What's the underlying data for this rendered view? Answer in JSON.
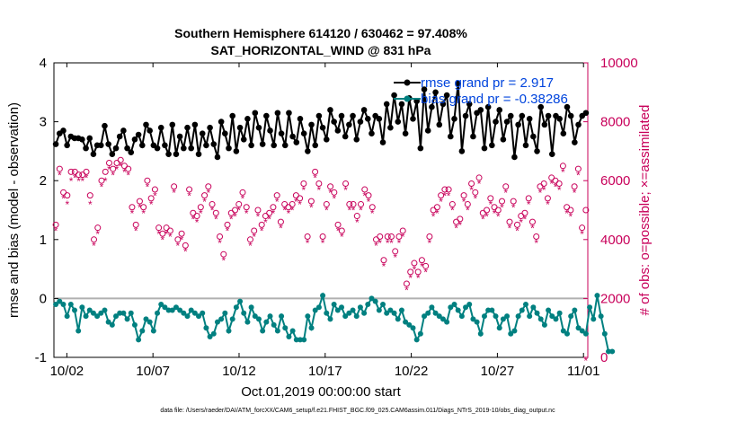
{
  "chart_data": {
    "type": "line",
    "title": "Southern Hemisphere 614120 / 630462 = 97.408%",
    "subtitle": "SAT_HORIZONTAL_WIND @ 831 hPa",
    "xlabel": "Oct.01,2019 00:00:00 start",
    "ylabel": "rmse and bias (model - observation)",
    "ylabel_right": "# of obs: o=possible; ×=assimilated",
    "footer": "data file: /Users/raeder/DAI/ATM_forcXX/CAM6_setup/f.e21.FHIST_BGC.f09_025.CAM6assim.011/Diags_NTrS_2019-10/obs_diag_output.nc",
    "ylim": [
      -1,
      4
    ],
    "ylim_right": [
      0,
      10000
    ],
    "x_tick_labels": [
      "10/02",
      "10/07",
      "10/12",
      "10/17",
      "10/22",
      "10/27",
      "11/01"
    ],
    "x_tick_days": [
      2,
      7,
      12,
      17,
      22,
      27,
      32
    ],
    "xlim_days": [
      1.25,
      32.25
    ],
    "y_ticks": [
      "-1",
      "0",
      "1",
      "2",
      "3",
      "4"
    ],
    "y_ticks_right": [
      "0",
      "2000",
      "4000",
      "6000",
      "8000",
      "10000"
    ],
    "legend": [
      "rmse grand pr = 2.917",
      "bias grand pr = -0.38286"
    ],
    "colors": {
      "rmse": "#000000",
      "bias": "#008080",
      "obs": "#c8005a",
      "zero": "#b0b0b0"
    },
    "series": [
      {
        "name": "rmse",
        "values": [
          2.62,
          2.8,
          2.85,
          2.6,
          2.75,
          2.72,
          2.72,
          2.7,
          2.55,
          2.72,
          2.45,
          2.6,
          2.6,
          2.93,
          2.62,
          2.45,
          2.55,
          2.75,
          2.85,
          2.55,
          2.48,
          2.7,
          2.78,
          2.6,
          2.95,
          2.85,
          2.6,
          2.55,
          2.9,
          2.6,
          2.45,
          2.95,
          2.45,
          2.75,
          2.55,
          2.9,
          2.55,
          2.95,
          2.45,
          2.8,
          2.6,
          2.9,
          2.62,
          2.4,
          3.0,
          2.8,
          2.55,
          3.1,
          2.5,
          2.9,
          2.7,
          3.05,
          2.6,
          3.15,
          2.9,
          2.62,
          3.1,
          2.85,
          2.6,
          3.15,
          2.8,
          2.6,
          3.15,
          2.75,
          2.65,
          3.05,
          2.8,
          2.5,
          2.95,
          2.6,
          3.1,
          2.9,
          2.7,
          3.2,
          3.0,
          2.85,
          3.1,
          2.75,
          2.95,
          3.1,
          2.7,
          3.0,
          3.2,
          3.05,
          2.8,
          3.1,
          3.05,
          2.65,
          3.3,
          2.9,
          3.45,
          3.0,
          3.3,
          2.8,
          3.4,
          3.05,
          3.35,
          2.55,
          3.55,
          2.85,
          3.25,
          3.5,
          2.95,
          3.3,
          3.45,
          2.75,
          3.05,
          3.65,
          2.5,
          3.1,
          3.3,
          2.75,
          3.15,
          3.2,
          2.55,
          3.25,
          2.6,
          3.0,
          3.2,
          2.7,
          3.0,
          3.1,
          2.4,
          2.95,
          3.1,
          2.6,
          3.05,
          2.75,
          2.5,
          3.25,
          2.95,
          3.1,
          2.45,
          3.1,
          3.05,
          2.8,
          3.25,
          3.1,
          2.65,
          2.95,
          3.1,
          3.15
        ]
      },
      {
        "name": "bias",
        "values": [
          -0.1,
          -0.05,
          -0.1,
          -0.3,
          -0.1,
          -0.2,
          -0.55,
          -0.15,
          -0.3,
          -0.2,
          -0.25,
          -0.3,
          -0.25,
          -0.2,
          -0.4,
          -0.45,
          -0.3,
          -0.25,
          -0.25,
          -0.35,
          -0.25,
          -0.45,
          -0.7,
          -0.55,
          -0.35,
          -0.4,
          -0.55,
          -0.25,
          -0.1,
          -0.15,
          -0.2,
          -0.2,
          -0.15,
          -0.2,
          -0.25,
          -0.3,
          -0.2,
          -0.25,
          -0.3,
          -0.25,
          -0.5,
          -0.65,
          -0.6,
          -0.4,
          -0.35,
          -0.25,
          -0.55,
          -0.35,
          -0.15,
          -0.05,
          -0.25,
          -0.4,
          -0.15,
          -0.3,
          -0.35,
          -0.55,
          -0.4,
          -0.3,
          -0.45,
          -0.55,
          -0.3,
          -0.5,
          -0.65,
          -0.55,
          -0.7,
          -0.7,
          -0.7,
          -0.3,
          -0.5,
          -0.2,
          -0.15,
          0.05,
          -0.25,
          -0.35,
          -0.1,
          -0.2,
          -0.15,
          -0.3,
          -0.25,
          -0.2,
          -0.3,
          -0.15,
          -0.25,
          -0.1,
          0.0,
          -0.05,
          -0.2,
          -0.1,
          -0.25,
          -0.2,
          -0.25,
          -0.35,
          -0.2,
          -0.4,
          -0.45,
          -0.5,
          -0.7,
          -0.6,
          -0.3,
          -0.25,
          -0.15,
          -0.25,
          -0.3,
          -0.35,
          -0.4,
          -0.15,
          -0.1,
          -0.2,
          -0.3,
          -0.15,
          -0.1,
          -0.35,
          -0.4,
          -0.6,
          -0.3,
          -0.2,
          -0.2,
          -0.3,
          -0.5,
          -0.35,
          -0.3,
          -0.6,
          -0.55,
          -0.3,
          -0.2,
          -0.1,
          -0.3,
          -0.15,
          -0.25,
          -0.35,
          -0.45,
          -0.2,
          -0.3,
          -0.35,
          -0.25,
          -0.55,
          -0.6,
          -0.3,
          -0.2,
          -0.5,
          -0.55,
          -0.6,
          -0.15,
          -0.35,
          0.05,
          -0.3,
          -0.6,
          -0.9,
          -0.9
        ]
      },
      {
        "name": "obs_possible",
        "values": [
          4500,
          6400,
          5600,
          5500,
          6300,
          6300,
          6200,
          6200,
          6300,
          5500,
          4000,
          4400,
          6000,
          6300,
          6600,
          6400,
          6600,
          6700,
          6500,
          6400,
          5100,
          4500,
          5300,
          5100,
          6000,
          5400,
          5700,
          4400,
          4200,
          4400,
          4300,
          5800,
          4000,
          4200,
          3800,
          5700,
          4900,
          4800,
          5100,
          5500,
          5800,
          5200,
          4900,
          4100,
          3500,
          4500,
          4900,
          5000,
          5200,
          5600,
          5100,
          4000,
          4300,
          5000,
          4500,
          4800,
          4900,
          5100,
          5500,
          4600,
          5200,
          5100,
          5200,
          5500,
          5400,
          5900,
          4100,
          5300,
          6300,
          5900,
          4100,
          5200,
          5800,
          5600,
          4500,
          4300,
          5900,
          5200,
          5200,
          4800,
          5200,
          5700,
          5500,
          5100,
          4000,
          4100,
          3300,
          4100,
          4100,
          3600,
          4100,
          4300,
          2500,
          2900,
          3200,
          2900,
          3300,
          3100,
          4100,
          5000,
          5100,
          5500,
          5700,
          5700,
          5200,
          4600,
          4700,
          5500,
          5200,
          5900,
          5600,
          6100,
          4900,
          5000,
          5400,
          5100,
          5000,
          5300,
          5800,
          4600,
          5300,
          4500,
          4800,
          4900,
          5400,
          4600,
          4100,
          5800,
          5900,
          5400,
          6100,
          6000,
          5900,
          6500,
          5100,
          5000,
          5800,
          6400,
          4400,
          5000
        ]
      },
      {
        "name": "obs_assimilated",
        "values": [
          4400,
          6300,
          5500,
          5300,
          6100,
          6200,
          6100,
          6100,
          6200,
          5300,
          3900,
          4300,
          5900,
          6100,
          6500,
          6300,
          6500,
          6600,
          6400,
          6300,
          5000,
          4400,
          5200,
          5000,
          5900,
          5300,
          5600,
          4300,
          4100,
          4300,
          4200,
          5700,
          3900,
          4100,
          3700,
          5600,
          4800,
          4700,
          5000,
          5400,
          5700,
          5100,
          4800,
          4000,
          3400,
          4400,
          4800,
          4900,
          5100,
          5500,
          5000,
          3900,
          4200,
          4900,
          4400,
          4700,
          4800,
          5000,
          5400,
          4500,
          5100,
          5000,
          5100,
          5400,
          5300,
          5800,
          4000,
          5200,
          6200,
          5800,
          4000,
          5100,
          5700,
          5500,
          4400,
          4200,
          5800,
          5100,
          5100,
          4700,
          5100,
          5600,
          5400,
          5000,
          3900,
          4000,
          3200,
          4000,
          4000,
          3500,
          4000,
          4200,
          2400,
          2800,
          3100,
          2800,
          3200,
          3000,
          4000,
          4900,
          5000,
          5400,
          5600,
          5600,
          5100,
          4500,
          4600,
          5400,
          5100,
          5800,
          5500,
          6000,
          4800,
          4900,
          5300,
          5000,
          4900,
          5200,
          5700,
          4500,
          5200,
          4400,
          4700,
          4800,
          5300,
          4500,
          4000,
          5700,
          5800,
          5300,
          6000,
          5900,
          5800,
          6400,
          5000,
          4900,
          5700,
          6300,
          4300,
          0
        ]
      }
    ]
  }
}
